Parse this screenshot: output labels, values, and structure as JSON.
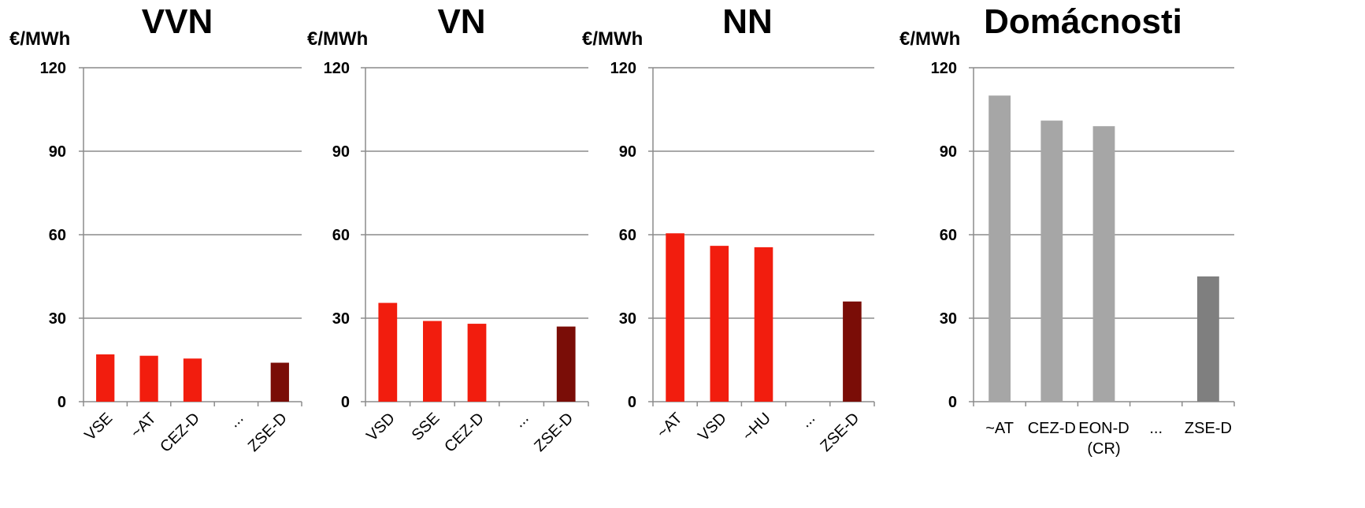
{
  "chart_data": [
    {
      "type": "bar",
      "title": "VVN",
      "ylabel": "€/MWh",
      "ylim": [
        0,
        120
      ],
      "yticks": [
        "0",
        "30",
        "60",
        "90",
        "120"
      ],
      "categories": [
        "VSE",
        "~AT",
        "CEZ-D",
        "...",
        "ZSE-D"
      ],
      "values": [
        17,
        16.5,
        15.5,
        null,
        14
      ],
      "colors": [
        "#f21d0e",
        "#f21d0e",
        "#f21d0e",
        null,
        "#7a0d07"
      ],
      "label_rotation": -45,
      "grid": true
    },
    {
      "type": "bar",
      "title": "VN",
      "ylabel": "€/MWh",
      "ylim": [
        0,
        120
      ],
      "yticks": [
        "0",
        "30",
        "60",
        "90",
        "120"
      ],
      "categories": [
        "VSD",
        "SSE",
        "CEZ-D",
        "...",
        "ZSE-D"
      ],
      "values": [
        35.5,
        29,
        28,
        null,
        27
      ],
      "colors": [
        "#f21d0e",
        "#f21d0e",
        "#f21d0e",
        null,
        "#7a0d07"
      ],
      "label_rotation": -45,
      "grid": true
    },
    {
      "type": "bar",
      "title": "NN",
      "ylabel": "€/MWh",
      "ylim": [
        0,
        120
      ],
      "yticks": [
        "0",
        "30",
        "60",
        "90",
        "120"
      ],
      "categories": [
        "~AT",
        "VSD",
        "~HU",
        "...",
        "ZSE-D"
      ],
      "values": [
        60.5,
        56,
        55.5,
        null,
        36
      ],
      "colors": [
        "#f21d0e",
        "#f21d0e",
        "#f21d0e",
        null,
        "#7a0d07"
      ],
      "label_rotation": -45,
      "grid": true
    },
    {
      "type": "bar",
      "title": "Domácnosti",
      "ylabel": "€/MWh",
      "ylim": [
        0,
        120
      ],
      "yticks": [
        "0",
        "30",
        "60",
        "90",
        "120"
      ],
      "categories": [
        "~AT",
        "CEZ-D",
        "EON-D\n(CR)",
        "...",
        "ZSE-D"
      ],
      "values": [
        110,
        101,
        99,
        null,
        45
      ],
      "colors": [
        "#a6a6a6",
        "#a6a6a6",
        "#a6a6a6",
        null,
        "#7f7f7f"
      ],
      "label_rotation": 0,
      "grid": true
    }
  ]
}
